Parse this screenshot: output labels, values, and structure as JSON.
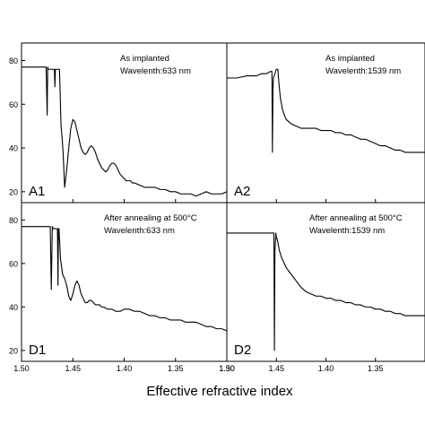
{
  "chart_data": [
    {
      "type": "line",
      "panel_label": "A1",
      "annotation": [
        "As implanted",
        "Wavelenth:633 nm"
      ],
      "xlim": [
        1.5,
        1.3
      ],
      "ylim": [
        15,
        88
      ],
      "yticks": [
        "20",
        "40",
        "60",
        "80"
      ],
      "x": [
        1.5,
        1.49,
        1.48,
        1.476,
        1.475,
        1.4745,
        1.474,
        1.47,
        1.468,
        1.4675,
        1.467,
        1.4665,
        1.465,
        1.464,
        1.463,
        1.4615,
        1.4605,
        1.4595,
        1.458,
        1.456,
        1.454,
        1.452,
        1.45,
        1.448,
        1.446,
        1.444,
        1.442,
        1.44,
        1.438,
        1.436,
        1.434,
        1.432,
        1.43,
        1.428,
        1.426,
        1.424,
        1.422,
        1.42,
        1.418,
        1.416,
        1.414,
        1.412,
        1.41,
        1.408,
        1.406,
        1.404,
        1.402,
        1.4,
        1.398,
        1.396,
        1.394,
        1.392,
        1.39,
        1.385,
        1.38,
        1.375,
        1.37,
        1.365,
        1.36,
        1.355,
        1.35,
        1.345,
        1.34,
        1.335,
        1.33,
        1.325,
        1.32,
        1.315,
        1.31,
        1.305,
        1.3
      ],
      "y": [
        77,
        77,
        77,
        77,
        55,
        77,
        76,
        76,
        76,
        68,
        76,
        76,
        76,
        76,
        76,
        50,
        45,
        38,
        22,
        30,
        40,
        49,
        53,
        52,
        48,
        44,
        40,
        38,
        37,
        38,
        40,
        41,
        40,
        38,
        35,
        33,
        31,
        30,
        29,
        30,
        32,
        33,
        33,
        32,
        30,
        28,
        27,
        26,
        25,
        25,
        25,
        24,
        24,
        23,
        22,
        22,
        22,
        21,
        21,
        20,
        20,
        19,
        19,
        19,
        18,
        19,
        20,
        19,
        19,
        19,
        20
      ]
    },
    {
      "type": "line",
      "panel_label": "A2",
      "annotation": [
        "As implanted",
        "Wavelenth:1539 nm"
      ],
      "xlim": [
        1.5,
        1.3
      ],
      "ylim": [
        15,
        88
      ],
      "x": [
        1.5,
        1.49,
        1.48,
        1.47,
        1.465,
        1.46,
        1.456,
        1.4545,
        1.454,
        1.4535,
        1.453,
        1.45,
        1.4485,
        1.4475,
        1.446,
        1.444,
        1.442,
        1.44,
        1.435,
        1.43,
        1.425,
        1.42,
        1.415,
        1.41,
        1.405,
        1.4,
        1.395,
        1.39,
        1.385,
        1.38,
        1.375,
        1.37,
        1.365,
        1.36,
        1.355,
        1.35,
        1.345,
        1.34,
        1.335,
        1.33,
        1.325,
        1.32,
        1.31,
        1.3
      ],
      "y": [
        72,
        72,
        73,
        73,
        74,
        74,
        75,
        75,
        38,
        66,
        72,
        76,
        76,
        70,
        63,
        58,
        55,
        53,
        51,
        50,
        49,
        49,
        49,
        49,
        48,
        48,
        48,
        47,
        47,
        46,
        46,
        45,
        44,
        44,
        43,
        42,
        41,
        41,
        40,
        39,
        39,
        38,
        38,
        38
      ],
      "xticks": [
        "1.50",
        "1.45",
        "1.40",
        "1.35"
      ]
    },
    {
      "type": "line",
      "panel_label": "D1",
      "annotation": [
        "After annealing at 500°C",
        "Wavelenth:633 nm"
      ],
      "xlim": [
        1.5,
        1.3
      ],
      "ylim": [
        15,
        88
      ],
      "yticks": [
        "20",
        "40",
        "60",
        "80"
      ],
      "xticks": [
        "1.50",
        "1.45",
        "1.40",
        "1.35",
        "1.30"
      ],
      "x": [
        1.5,
        1.49,
        1.48,
        1.472,
        1.471,
        1.47,
        1.469,
        1.465,
        1.4645,
        1.464,
        1.4635,
        1.462,
        1.46,
        1.458,
        1.456,
        1.454,
        1.452,
        1.45,
        1.448,
        1.446,
        1.444,
        1.442,
        1.44,
        1.438,
        1.436,
        1.434,
        1.432,
        1.43,
        1.428,
        1.426,
        1.424,
        1.422,
        1.42,
        1.416,
        1.412,
        1.408,
        1.404,
        1.4,
        1.395,
        1.39,
        1.385,
        1.38,
        1.375,
        1.37,
        1.365,
        1.36,
        1.355,
        1.35,
        1.345,
        1.34,
        1.335,
        1.33,
        1.325,
        1.32,
        1.315,
        1.31,
        1.305,
        1.3
      ],
      "y": [
        77,
        77,
        77,
        77,
        48,
        77,
        76,
        76,
        50,
        76,
        76,
        62,
        55,
        53,
        50,
        45,
        43,
        46,
        50,
        52,
        50,
        46,
        44,
        42,
        42,
        43,
        43,
        42,
        41,
        41,
        41,
        40,
        40,
        39,
        39,
        38,
        38,
        39,
        39,
        38,
        38,
        37,
        36,
        36,
        35,
        35,
        34,
        34,
        34,
        33,
        33,
        33,
        32,
        31,
        31,
        30,
        30,
        29
      ]
    },
    {
      "type": "line",
      "panel_label": "D2",
      "annotation": [
        "After annealing at 500°C",
        "Wavelenth:1539 nm"
      ],
      "xlim": [
        1.5,
        1.3
      ],
      "ylim": [
        15,
        88
      ],
      "xticks": [
        "1.50",
        "1.45",
        "1.40",
        "1.35"
      ],
      "x": [
        1.5,
        1.49,
        1.48,
        1.47,
        1.46,
        1.454,
        1.4525,
        1.452,
        1.4515,
        1.4505,
        1.45,
        1.449,
        1.447,
        1.445,
        1.442,
        1.44,
        1.435,
        1.43,
        1.425,
        1.42,
        1.415,
        1.41,
        1.405,
        1.4,
        1.395,
        1.39,
        1.385,
        1.38,
        1.375,
        1.37,
        1.365,
        1.36,
        1.355,
        1.35,
        1.345,
        1.34,
        1.335,
        1.33,
        1.325,
        1.32,
        1.31,
        1.3
      ],
      "y": [
        74,
        74,
        74,
        74,
        74,
        74,
        74,
        20,
        65,
        74,
        72,
        71,
        66,
        63,
        60,
        58,
        55,
        52,
        49,
        47,
        46,
        45,
        45,
        44,
        44,
        43,
        43,
        42,
        42,
        41,
        41,
        40,
        40,
        39,
        39,
        38,
        38,
        37,
        37,
        36,
        36,
        36
      ]
    }
  ],
  "xlabel": "Effective refractive index"
}
